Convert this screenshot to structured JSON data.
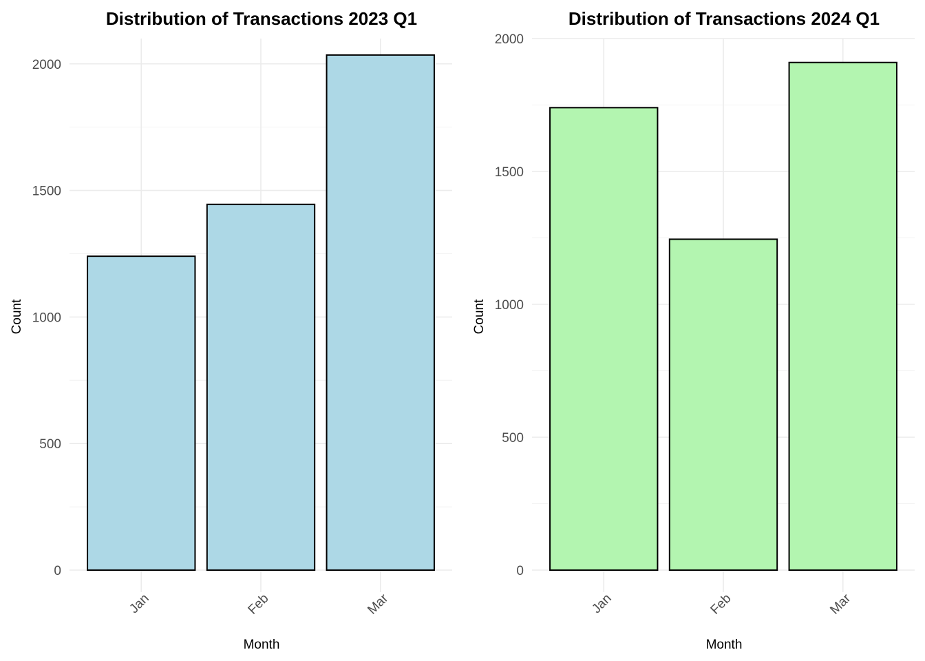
{
  "chart_data": [
    {
      "type": "bar",
      "title": "Distribution of Transactions 2023 Q1",
      "xlabel": "Month",
      "ylabel": "Count",
      "categories": [
        "Jan",
        "Feb",
        "Mar"
      ],
      "values": [
        1240,
        1445,
        2035
      ],
      "ylim": [
        0,
        2100
      ],
      "yticks": [
        0,
        500,
        1000,
        1500,
        2000
      ],
      "ytick_labels": [
        "0",
        "500",
        "1000",
        "1500",
        "2000"
      ],
      "bar_color": "#add8e6",
      "bar_outline": "#000000",
      "grid": true,
      "legend": false
    },
    {
      "type": "bar",
      "title": "Distribution of Transactions 2024 Q1",
      "xlabel": "Month",
      "ylabel": "Count",
      "categories": [
        "Jan",
        "Feb",
        "Mar"
      ],
      "values": [
        1740,
        1245,
        1910
      ],
      "ylim": [
        0,
        2000
      ],
      "yticks": [
        0,
        500,
        1000,
        1500,
        2000
      ],
      "ytick_labels": [
        "0",
        "500",
        "1000",
        "1500",
        "2000"
      ],
      "bar_color": "#b3f5b0",
      "bar_outline": "#000000",
      "grid": true,
      "legend": false
    }
  ]
}
